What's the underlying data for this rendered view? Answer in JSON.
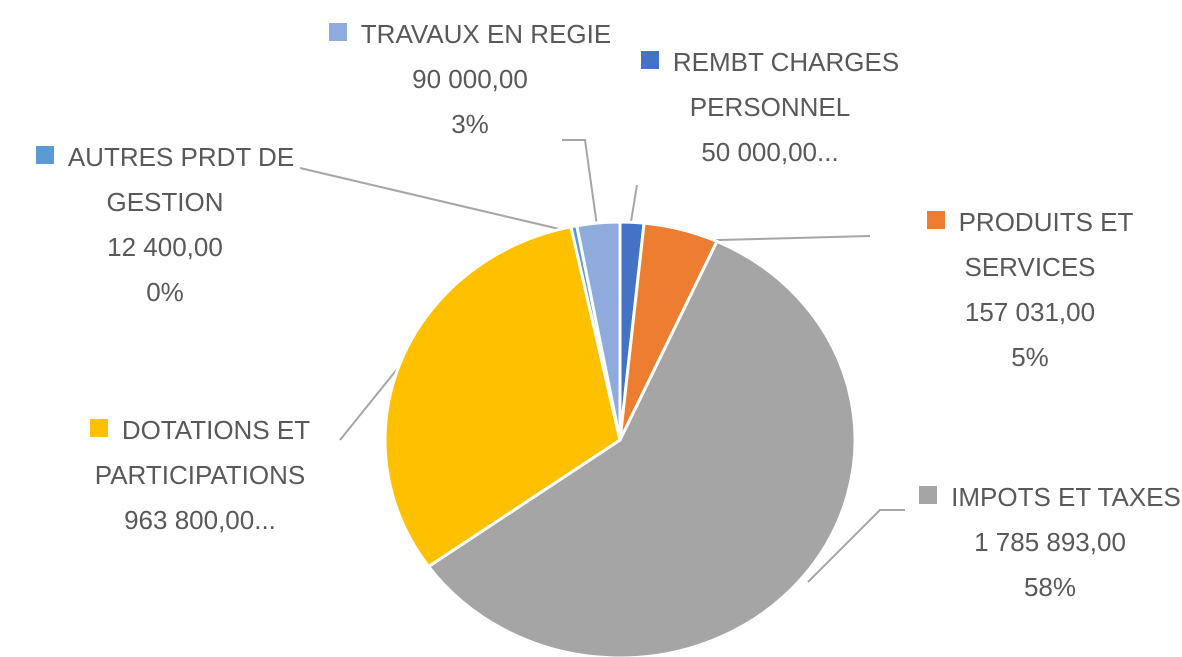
{
  "chart_data": {
    "type": "pie",
    "categories": [
      "REMBT CHARGES PERSONNEL",
      "PRODUITS ET SERVICES",
      "IMPOTS ET TAXES",
      "DOTATIONS ET PARTICIPATIONS",
      "AUTRES PRDT DE GESTION",
      "TRAVAUX EN REGIE"
    ],
    "values": [
      50000,
      157031,
      1785893,
      963800,
      12400,
      90000
    ],
    "value_labels": [
      "50 000,00...",
      "157 031,00",
      "1 785 893,00",
      "963 800,00...",
      "12 400,00",
      "90 000,00"
    ],
    "percents": [
      null,
      5,
      58,
      null,
      0,
      3
    ],
    "percent_labels": [
      null,
      "5%",
      "58%",
      null,
      "0%",
      "3%"
    ],
    "colors": [
      "#4472c4",
      "#ed7d31",
      "#a5a5a5",
      "#ffc000",
      "#5b9bd5",
      "#8faadc"
    ]
  }
}
